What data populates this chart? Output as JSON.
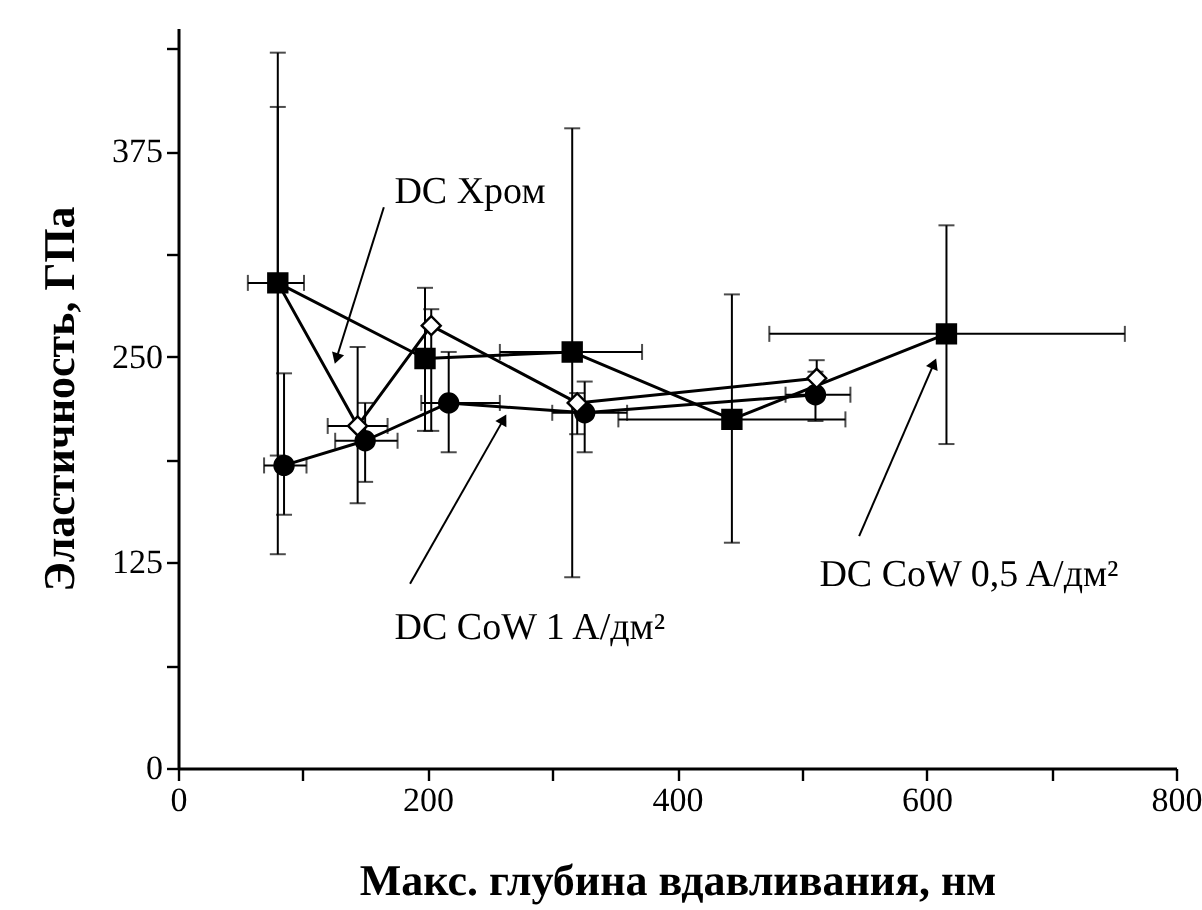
{
  "chart_data": {
    "type": "line",
    "xlabel": "Макс. глубина вдавливания, нм",
    "ylabel": "Эластичность, ГПа",
    "xlim": [
      0,
      800
    ],
    "xticks": [
      0,
      {
        "value": 100,
        "label": null
      },
      200,
      {
        "value": 300,
        "label": null
      },
      400,
      {
        "value": 500,
        "label": null
      },
      600,
      {
        "value": 700,
        "label": null
      },
      800
    ],
    "ylim": [
      0,
      450
    ],
    "yticks": [
      0,
      {
        "value": 62.5,
        "label": null
      },
      125,
      {
        "value": 187.5,
        "label": null
      },
      250,
      {
        "value": 312.5,
        "label": null
      },
      375,
      {
        "value": 437.5,
        "label": null
      }
    ],
    "grid": false,
    "series": [
      {
        "name": "DC  CoW  0,5 A/дм²",
        "color": "#000000",
        "marker": "square",
        "x": [
          80,
          198,
          316,
          444,
          616
        ],
        "values": [
          295,
          249,
          253,
          212,
          264
        ],
        "errors": [
          [
            130,
            435
          ],
          [
            205,
            292
          ],
          [
            116,
            389
          ],
          [
            137,
            288
          ],
          [
            197,
            330
          ]
        ],
        "xerrors": [
          [
            56,
            101
          ],
          null,
          [
            258,
            372
          ],
          [
            353,
            535
          ],
          [
            474,
            759
          ]
        ]
      },
      {
        "name": "DC Хром",
        "color": "#000000",
        "marker": "diamond",
        "x": [
          80,
          144,
          203,
          320,
          512
        ],
        "values": [
          295,
          208,
          269,
          222,
          237
        ],
        "errors": [
          [
            190,
            402
          ],
          [
            161,
            256
          ],
          [
            205,
            279
          ],
          [
            203,
            228
          ],
          [
            226,
            248
          ]
        ],
        "xerrors": [
          null,
          [
            120,
            168
          ],
          null,
          null,
          null
        ]
      },
      {
        "name": "DC  CoW  1 A/дм²",
        "color": "#000000",
        "marker": "circle",
        "x": [
          85,
          150,
          217,
          326,
          511
        ],
        "values": [
          184,
          199,
          222,
          216,
          227
        ],
        "errors": [
          [
            154,
            240
          ],
          [
            174,
            222
          ],
          [
            192,
            253
          ],
          [
            192,
            235
          ],
          [
            211,
            241
          ]
        ],
        "xerrors": [
          [
            69,
            103
          ],
          [
            126,
            176
          ],
          [
            195,
            258
          ],
          [
            300,
            360
          ],
          [
            487,
            539
          ]
        ]
      }
    ]
  }
}
